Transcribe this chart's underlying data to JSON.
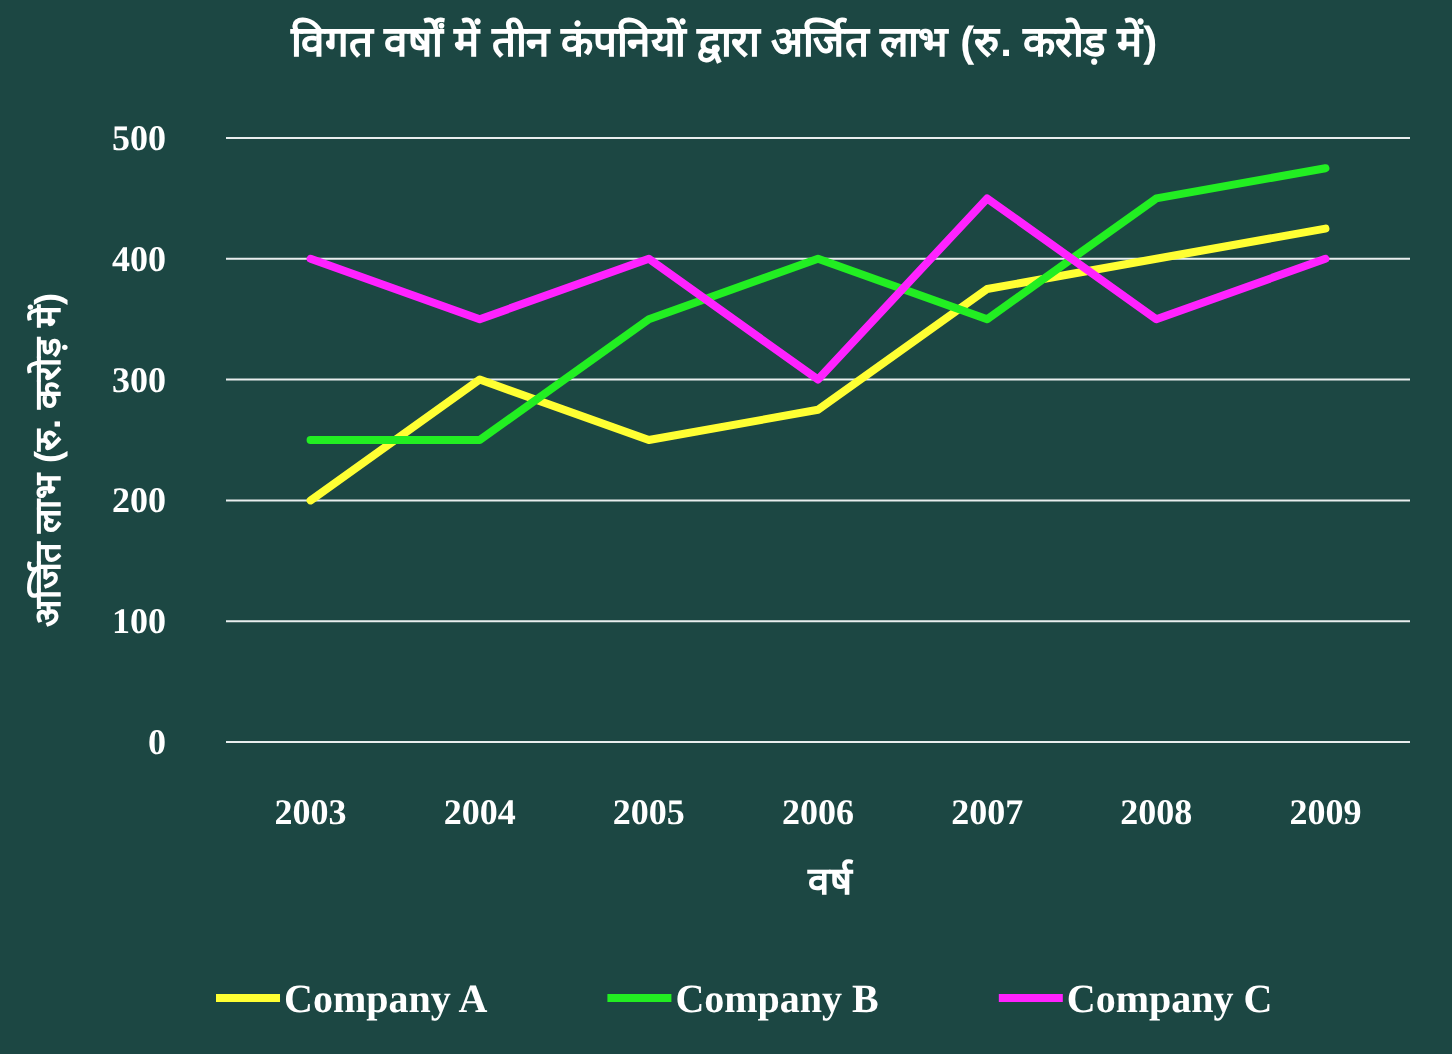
{
  "chart_data": {
    "type": "line",
    "title": "विगत वर्षों में तीन कंपनियों द्वारा अर्जित लाभ (रु. करोड़ में)",
    "xlabel": "वर्ष",
    "ylabel": "अर्जित लाभ (रु. करोड़ में)",
    "categories": [
      "2003",
      "2004",
      "2005",
      "2006",
      "2007",
      "2008",
      "2009"
    ],
    "series": [
      {
        "name": "Company A",
        "color": "#ffff33",
        "values": [
          200,
          300,
          250,
          275,
          375,
          400,
          425
        ]
      },
      {
        "name": "Company B",
        "color": "#22ee22",
        "values": [
          250,
          250,
          350,
          400,
          350,
          450,
          475
        ]
      },
      {
        "name": "Company C",
        "color": "#ff22ff",
        "values": [
          400,
          350,
          400,
          300,
          450,
          350,
          400
        ]
      }
    ],
    "ylim": [
      0,
      500
    ],
    "yticks": [
      0,
      100,
      200,
      300,
      400,
      500
    ],
    "grid": "y",
    "legend": "bottom"
  }
}
